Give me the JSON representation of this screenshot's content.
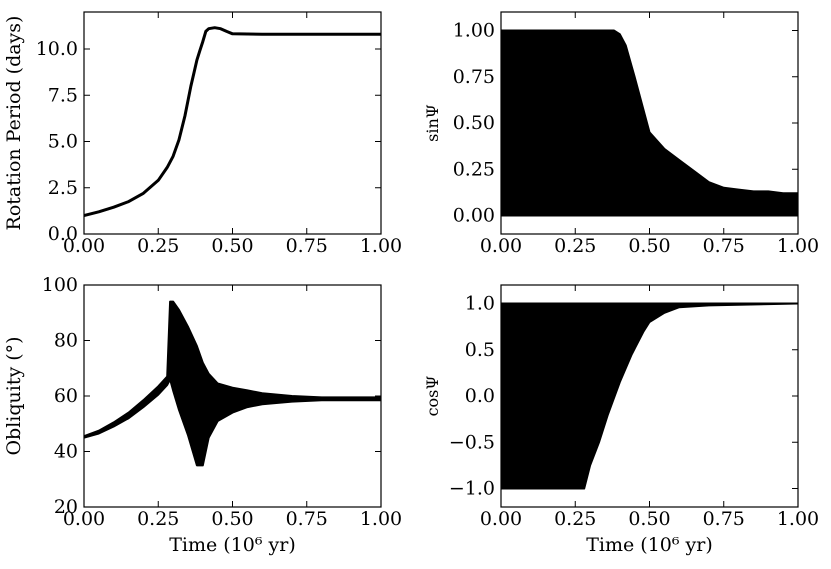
{
  "chart_data": [
    {
      "id": "rotation",
      "type": "line",
      "title": "",
      "xlabel": "",
      "ylabel": "Rotation Period (days)",
      "xlim": [
        0,
        1.0
      ],
      "ylim": [
        0,
        12.0
      ],
      "xticks": [
        "0.00",
        "0.25",
        "0.50",
        "0.75",
        "1.00"
      ],
      "yticks": [
        "0.0",
        "2.5",
        "5.0",
        "7.5",
        "10.0"
      ],
      "grid": false,
      "series": [
        {
          "x": [
            0.0,
            0.05,
            0.1,
            0.15,
            0.2,
            0.25,
            0.28,
            0.3,
            0.32,
            0.34,
            0.36,
            0.37,
            0.38,
            0.39,
            0.4,
            0.41,
            0.42,
            0.44,
            0.46,
            0.48,
            0.5,
            0.6,
            0.7,
            0.8,
            0.9,
            1.0
          ],
          "y": [
            1.0,
            1.2,
            1.45,
            1.75,
            2.2,
            2.9,
            3.6,
            4.2,
            5.1,
            6.4,
            8.0,
            8.7,
            9.4,
            9.9,
            10.4,
            10.95,
            11.1,
            11.15,
            11.1,
            10.95,
            10.82,
            10.8,
            10.8,
            10.8,
            10.8,
            10.8
          ]
        }
      ]
    },
    {
      "id": "sinpsi",
      "type": "line",
      "title": "",
      "xlabel": "",
      "ylabel": "sinΨ",
      "xlim": [
        0,
        1.0
      ],
      "ylim": [
        -0.1,
        1.1
      ],
      "xticks": [
        "0.00",
        "0.25",
        "0.50",
        "0.75",
        "1.00"
      ],
      "yticks": [
        "0.00",
        "0.25",
        "0.50",
        "0.75",
        "1.00"
      ],
      "grid": false,
      "series": [
        {
          "x": [
            0.0,
            0.3,
            0.38,
            0.4,
            0.42,
            0.45,
            0.5,
            0.55,
            0.6,
            0.65,
            0.7,
            0.75,
            0.8,
            0.85,
            0.9,
            0.95,
            1.0
          ],
          "upper": [
            1.0,
            1.0,
            1.0,
            0.98,
            0.92,
            0.75,
            0.45,
            0.36,
            0.3,
            0.24,
            0.18,
            0.15,
            0.14,
            0.13,
            0.13,
            0.12,
            0.12
          ],
          "lower": [
            0.0,
            0.0,
            0.0,
            0.0,
            0.0,
            0.0,
            0.0,
            0.0,
            0.0,
            0.0,
            0.0,
            0.0,
            0.0,
            0.0,
            0.0,
            0.0,
            0.0
          ]
        }
      ]
    },
    {
      "id": "obliquity",
      "type": "line",
      "title": "",
      "xlabel": "Time (10⁶ yr)",
      "ylabel": "Obliquity (°)",
      "xlim": [
        0,
        1.0
      ],
      "ylim": [
        20,
        100
      ],
      "xticks": [
        "0.00",
        "0.25",
        "0.50",
        "0.75",
        "1.00"
      ],
      "yticks": [
        "20",
        "40",
        "60",
        "80",
        "100"
      ],
      "grid": false,
      "series": [
        {
          "x": [
            0.0,
            0.05,
            0.1,
            0.15,
            0.2,
            0.25,
            0.28,
            0.29,
            0.3,
            0.32,
            0.35,
            0.38,
            0.4,
            0.42,
            0.45,
            0.5,
            0.55,
            0.6,
            0.7,
            0.8,
            0.9,
            1.0
          ],
          "upper": [
            45.5,
            47.5,
            50.5,
            54.0,
            58.5,
            63.5,
            67.0,
            94.0,
            94.0,
            91.0,
            85.0,
            78.0,
            72.0,
            68.0,
            64.5,
            63.0,
            62.0,
            61.0,
            60.0,
            59.5,
            59.5,
            59.5
          ],
          "lower": [
            45.0,
            46.5,
            49.0,
            52.0,
            56.0,
            60.5,
            64.0,
            66.0,
            62.0,
            55.0,
            46.0,
            35.0,
            35.0,
            45.0,
            51.0,
            54.0,
            56.0,
            57.0,
            58.0,
            58.5,
            58.5,
            58.5
          ]
        }
      ]
    },
    {
      "id": "cospsi",
      "type": "line",
      "title": "",
      "xlabel": "Time (10⁶ yr)",
      "ylabel": "cosΨ",
      "xlim": [
        0,
        1.0
      ],
      "ylim": [
        -1.2,
        1.2
      ],
      "xticks": [
        "0.00",
        "0.25",
        "0.50",
        "0.75",
        "1.00"
      ],
      "yticks": [
        "−1.0",
        "−0.5",
        "0.0",
        "0.5",
        "1.0"
      ],
      "grid": false,
      "series": [
        {
          "x": [
            0.0,
            0.28,
            0.3,
            0.33,
            0.36,
            0.4,
            0.44,
            0.48,
            0.5,
            0.55,
            0.6,
            0.7,
            1.0
          ],
          "upper": [
            1.0,
            1.0,
            1.0,
            1.0,
            1.0,
            1.0,
            1.0,
            1.0,
            1.0,
            1.0,
            1.0,
            1.0,
            1.0
          ],
          "lower": [
            -1.0,
            -1.0,
            -0.75,
            -0.5,
            -0.2,
            0.15,
            0.45,
            0.7,
            0.8,
            0.9,
            0.96,
            0.98,
            1.0
          ]
        }
      ]
    }
  ]
}
